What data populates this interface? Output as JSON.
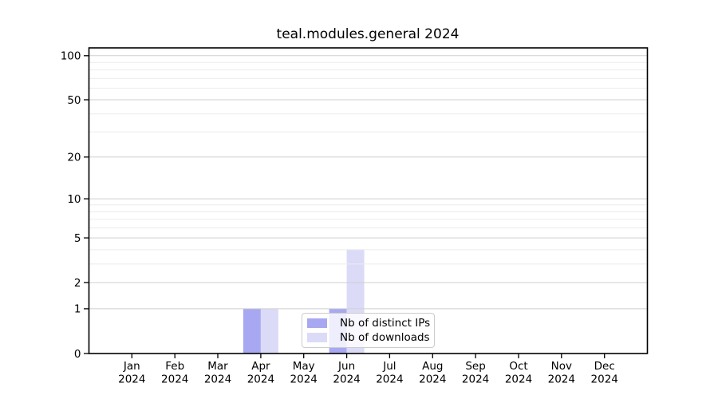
{
  "chart_data": {
    "type": "bar",
    "title": "teal.modules.general 2024",
    "categories": [
      "Jan",
      "Feb",
      "Mar",
      "Apr",
      "May",
      "Jun",
      "Jul",
      "Aug",
      "Sep",
      "Oct",
      "Nov",
      "Dec"
    ],
    "xtick_year": "2024",
    "series": [
      {
        "name": "Nb of distinct IPs",
        "slug": "distinct-ips",
        "color": "#a8a8f2",
        "values": [
          0,
          0,
          0,
          1,
          0,
          1,
          0,
          0,
          0,
          0,
          0,
          0
        ]
      },
      {
        "name": "Nb of downloads",
        "slug": "downloads",
        "color": "#dbdbf8",
        "values": [
          0,
          0,
          0,
          1,
          0,
          4,
          0,
          0,
          0,
          0,
          0,
          0
        ]
      }
    ],
    "yscale": "log1p",
    "ylim": [
      0,
      113
    ],
    "yticks_major": [
      0,
      1,
      2,
      5,
      10,
      20,
      50,
      100
    ],
    "yticks_minor": [
      3,
      4,
      6,
      7,
      8,
      9,
      30,
      40,
      60,
      70,
      80,
      90
    ],
    "grid": true,
    "grid_above_bars": true,
    "legend_position": "lower center-right",
    "colors": {
      "spine": "#000000",
      "text": "#000000",
      "major_grid": "#cfcfcf",
      "minor_grid": "#ebebeb"
    }
  }
}
